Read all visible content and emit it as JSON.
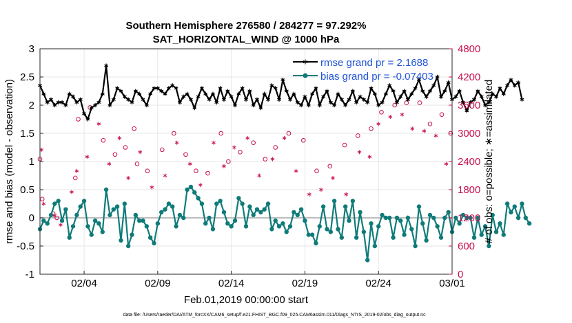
{
  "chart_data": {
    "type": "line",
    "title": "Southern Hemisphere 276580 / 284277 = 97.292%",
    "subtitle": "SAT_HORIZONTAL_WIND @ 1000 hPa",
    "xlabel": "Feb.01,2019 00:00:00 start",
    "ylabel_left": "rmse and bias (model - observation)",
    "ylabel_right": "# of obs: o=possible; ∗=assimilated",
    "footer": "data file: /Users/raeder/DAI/ATM_forcXX/CAM6_setup/f.e21.FHIST_BGC.f09_025.CAM6assim.011/Diags_NTrS_2019-02/obs_diag_output.nc",
    "x_range": [
      1.0,
      29.0
    ],
    "ylim": [
      -1,
      3
    ],
    "ylim_right": [
      0,
      4800
    ],
    "x_ticks": [
      {
        "value": 4,
        "label": "02/04"
      },
      {
        "value": 9,
        "label": "02/09"
      },
      {
        "value": 14,
        "label": "02/14"
      },
      {
        "value": 19,
        "label": "02/19"
      },
      {
        "value": 24,
        "label": "02/24"
      },
      {
        "value": 29,
        "label": "03/01"
      }
    ],
    "y_ticks": [
      "-1",
      "-0.5",
      "0",
      "0.5",
      "1",
      "1.5",
      "2",
      "2.5",
      "3"
    ],
    "y_ticks_right": [
      "0",
      "600",
      "1200",
      "1800",
      "2400",
      "3000",
      "3600",
      "4200",
      "4800"
    ],
    "legend": [
      {
        "label": "rmse grand pr = 2.1688",
        "color": "#000000"
      },
      {
        "label": "bias grand pr = -0.07403",
        "color": "#0f7b79"
      }
    ],
    "colors": {
      "rmse": "#000000",
      "bias": "#0f7b79",
      "obs": "#c8104f",
      "zero_line": "#bdbdbd",
      "legend_text": "#1f54d6",
      "grid": "#e6e6e6"
    },
    "series": [
      {
        "name": "rmse",
        "step_days": 0.25,
        "values": [
          2.35,
          2.2,
          2.05,
          2.1,
          2.0,
          2.05,
          2.05,
          2.0,
          2.2,
          2.15,
          2.05,
          2.1,
          1.85,
          1.75,
          1.95,
          2.0,
          2.05,
          2.2,
          2.7,
          2.0,
          2.1,
          2.3,
          2.25,
          2.15,
          2.1,
          2.05,
          2.25,
          2.2,
          2.1,
          2.0,
          2.2,
          2.3,
          2.3,
          2.25,
          2.2,
          2.3,
          2.35,
          2.3,
          2.05,
          2.15,
          2.2,
          2.1,
          1.95,
          2.15,
          2.3,
          2.2,
          2.1,
          2.2,
          2.05,
          2.3,
          2.1,
          2.25,
          2.15,
          2.0,
          2.2,
          2.3,
          2.1,
          2.25,
          2.0,
          2.1,
          1.95,
          2.2,
          2.1,
          2.35,
          2.3,
          2.1,
          2.45,
          2.25,
          2.1,
          2.2,
          2.05,
          2.0,
          2.15,
          2.0,
          2.2,
          2.3,
          2.0,
          2.15,
          2.25,
          2.05,
          2.0,
          2.2,
          2.1,
          2.0,
          2.1,
          2.25,
          2.05,
          2.15,
          2.1,
          2.05,
          2.3,
          2.2,
          2.0,
          2.05,
          2.2,
          2.35,
          2.25,
          2.05,
          2.15,
          2.25,
          2.1,
          2.2,
          2.3,
          2.45,
          2.25,
          2.15,
          2.25,
          2.35,
          2.5,
          2.15,
          2.25,
          2.4,
          2.1,
          2.15,
          2.25,
          2.05,
          1.9,
          2.05,
          2.1,
          2.25,
          2.15,
          2.0,
          2.05,
          2.2,
          2.15,
          2.3,
          2.2,
          2.35,
          2.45,
          2.35,
          2.4,
          2.1
        ]
      },
      {
        "name": "bias",
        "step_days": 0.25,
        "values": [
          -0.2,
          -0.05,
          -0.1,
          0.05,
          0.25,
          0.3,
          -0.05,
          0.15,
          -0.35,
          -0.15,
          0.05,
          0.2,
          0.3,
          -0.15,
          -0.3,
          -0.05,
          -0.1,
          -0.25,
          0.5,
          0.05,
          0.15,
          0.2,
          -0.4,
          0.25,
          -0.5,
          -0.3,
          0.05,
          -0.05,
          -0.05,
          -0.15,
          -0.35,
          -0.45,
          -0.1,
          0.1,
          0.15,
          0.25,
          0.2,
          -0.15,
          0.05,
          0.0,
          0.5,
          0.55,
          0.45,
          0.35,
          0.25,
          -0.1,
          0.0,
          -0.2,
          0.25,
          0.3,
          0.1,
          -0.1,
          -0.15,
          -0.05,
          0.35,
          0.25,
          -0.15,
          0.2,
          0.05,
          0.15,
          0.1,
          0.15,
          0.25,
          -0.2,
          -0.05,
          -0.15,
          -0.1,
          -0.25,
          -0.15,
          0.1,
          0.05,
          0.15,
          -0.05,
          -0.3,
          -0.3,
          -0.45,
          -0.15,
          0.2,
          -0.2,
          -0.25,
          0.3,
          -0.2,
          -0.35,
          0.2,
          -0.05,
          0.3,
          -0.35,
          0.1,
          -0.25,
          -0.75,
          -0.1,
          -0.5,
          -0.15,
          0.05,
          0.0,
          0.0,
          -0.35,
          0.0,
          -0.05,
          -0.3,
          0.0,
          -0.2,
          -0.5,
          0.2,
          -0.1,
          -0.4,
          0.05,
          0.0,
          -0.15,
          -0.35,
          0.0,
          0.1,
          -0.25,
          0.0,
          -0.1,
          0.05,
          0.0,
          0.0,
          -0.35,
          0.0,
          -0.3,
          -0.15,
          -0.5,
          0.05,
          -0.25,
          -0.1,
          -0.3,
          0.25,
          0.1,
          0.2,
          0.0,
          0.25,
          0.0,
          -0.1
        ]
      }
    ],
    "obs_possible": [
      [
        1.0,
        2450
      ],
      [
        1.15,
        1600
      ],
      [
        1.9,
        1290
      ],
      [
        2.15,
        1200
      ],
      [
        3.4,
        2050
      ],
      [
        3.6,
        3300
      ],
      [
        4.4,
        3550
      ],
      [
        5.3,
        2850
      ],
      [
        6.1,
        2550
      ],
      [
        6.8,
        2700
      ],
      [
        7.4,
        3100
      ],
      [
        7.6,
        2350
      ],
      [
        8.3,
        2200
      ],
      [
        9.3,
        2650
      ],
      [
        10.1,
        3000
      ],
      [
        10.9,
        2550
      ],
      [
        11.6,
        2200
      ],
      [
        12.4,
        2150
      ],
      [
        13.3,
        3000
      ],
      [
        13.8,
        2400
      ],
      [
        14.6,
        2600
      ],
      [
        15.5,
        2800
      ],
      [
        16.3,
        2450
      ],
      [
        17.0,
        2700
      ],
      [
        17.9,
        3000
      ],
      [
        18.9,
        2850
      ],
      [
        19.8,
        2200
      ],
      [
        20.7,
        2300
      ],
      [
        21.7,
        2750
      ],
      [
        22.6,
        2950
      ],
      [
        23.5,
        3100
      ],
      [
        24.2,
        3450
      ],
      [
        25.1,
        3600
      ],
      [
        25.9,
        3650
      ],
      [
        26.8,
        3650
      ],
      [
        27.5,
        3200
      ],
      [
        28.3,
        3400
      ],
      [
        28.9,
        3000
      ]
    ],
    "obs_assimilated": [
      [
        1.1,
        2650
      ],
      [
        1.25,
        1500
      ],
      [
        2.0,
        1250
      ],
      [
        2.4,
        1050
      ],
      [
        3.15,
        1750
      ],
      [
        3.5,
        2200
      ],
      [
        4.2,
        2500
      ],
      [
        5.0,
        3200
      ],
      [
        5.7,
        2350
      ],
      [
        6.4,
        2900
      ],
      [
        7.0,
        2050
      ],
      [
        7.8,
        2600
      ],
      [
        8.6,
        1850
      ],
      [
        9.5,
        2100
      ],
      [
        10.3,
        2800
      ],
      [
        11.2,
        2350
      ],
      [
        11.9,
        1900
      ],
      [
        12.8,
        2800
      ],
      [
        13.5,
        2300
      ],
      [
        14.2,
        2700
      ],
      [
        15.1,
        2900
      ],
      [
        15.9,
        2100
      ],
      [
        16.8,
        2450
      ],
      [
        17.6,
        2900
      ],
      [
        18.4,
        2200
      ],
      [
        19.3,
        1700
      ],
      [
        20.1,
        1800
      ],
      [
        20.9,
        2050
      ],
      [
        21.8,
        1700
      ],
      [
        22.7,
        2600
      ],
      [
        23.4,
        2500
      ],
      [
        24.0,
        3200
      ],
      [
        24.8,
        3350
      ],
      [
        25.6,
        3400
      ],
      [
        26.3,
        3100
      ],
      [
        27.1,
        3050
      ],
      [
        27.9,
        2950
      ],
      [
        28.6,
        2350
      ]
    ]
  }
}
